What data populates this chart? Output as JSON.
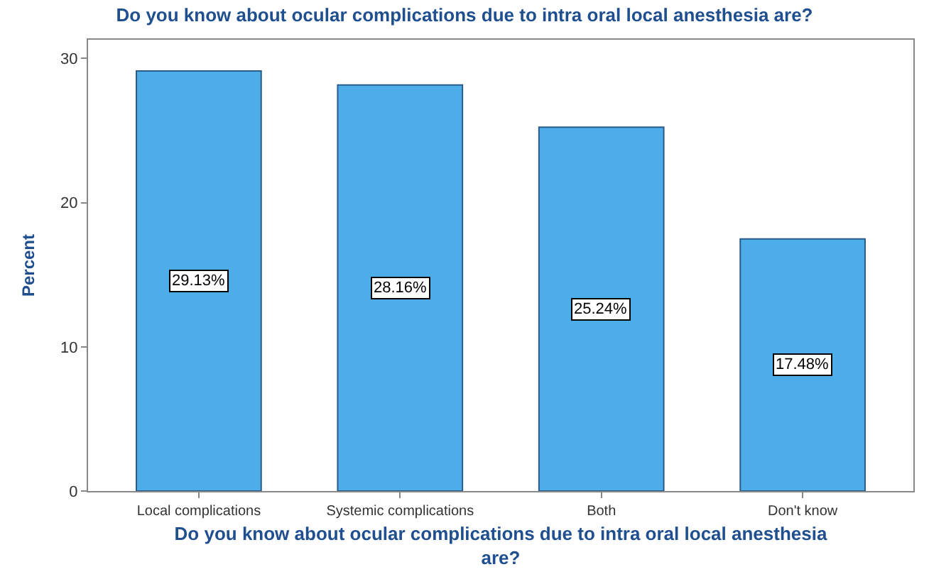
{
  "chart_data": {
    "type": "bar",
    "title": "Do you know about ocular complications due to intra oral local anesthesia are?",
    "xlabel": "Do you know about ocular complications due to intra oral local anesthesia are?",
    "ylabel": "Percent",
    "categories": [
      "Local complications",
      "Systemic complications",
      "Both",
      "Don't know"
    ],
    "values": [
      29.13,
      28.16,
      25.24,
      17.48
    ],
    "value_labels": [
      "29.13%",
      "28.16%",
      "25.24%",
      "17.48%"
    ],
    "color": "#4dade8",
    "ylim": [
      0,
      31.3
    ],
    "yticks": [
      0,
      10,
      20,
      30
    ]
  }
}
